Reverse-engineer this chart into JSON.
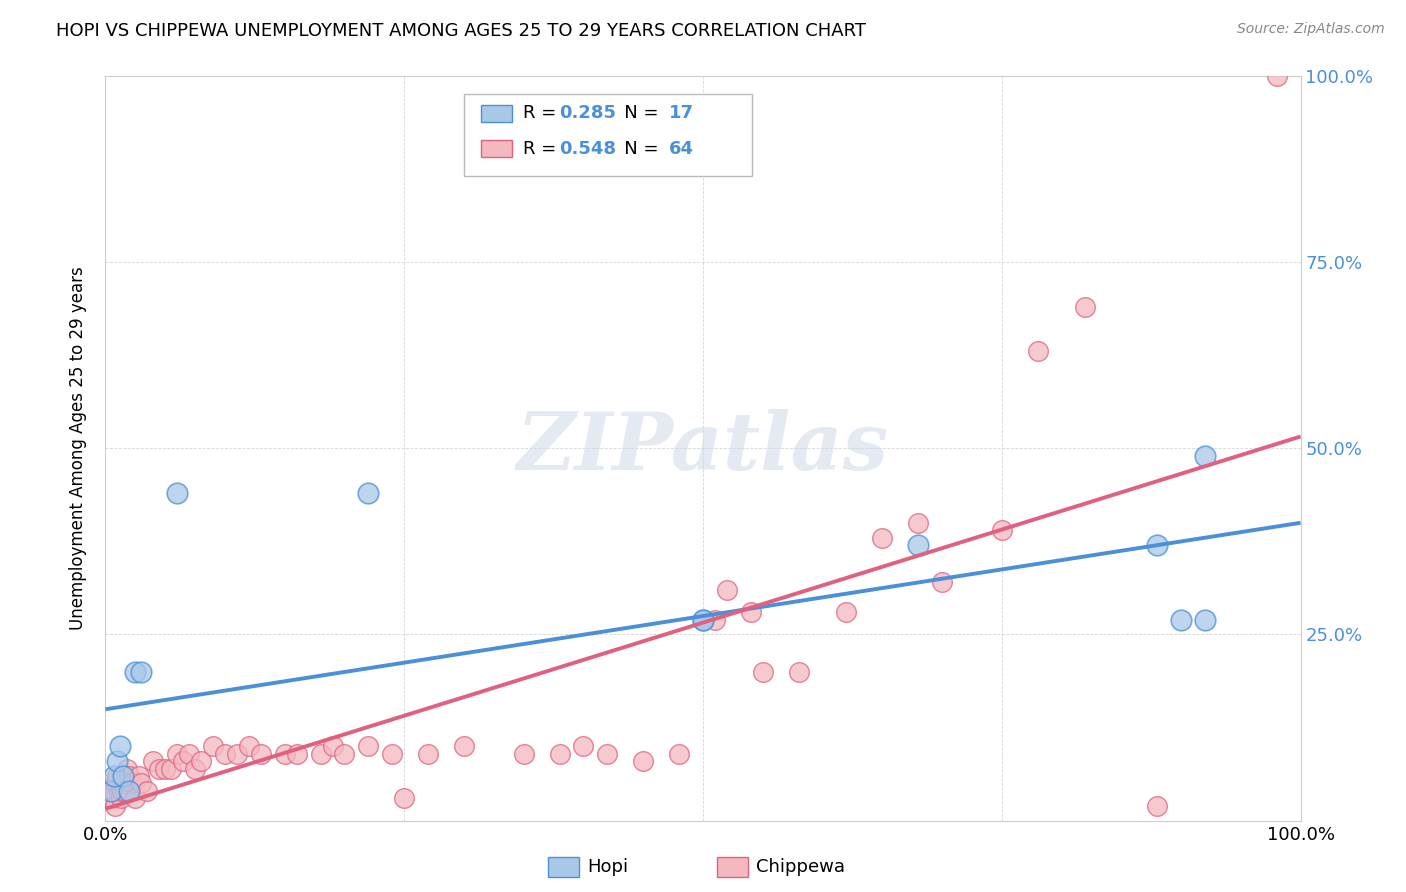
{
  "title": "HOPI VS CHIPPEWA UNEMPLOYMENT AMONG AGES 25 TO 29 YEARS CORRELATION CHART",
  "source": "Source: ZipAtlas.com",
  "ylabel": "Unemployment Among Ages 25 to 29 years",
  "xlim": [
    0,
    1.0
  ],
  "ylim": [
    0,
    1.0
  ],
  "hopi_color": "#a8c8e8",
  "chippewa_color": "#f4b8c0",
  "hopi_line_color": "#4a90d9",
  "chippewa_line_color": "#e0607e",
  "hopi_R": 0.285,
  "hopi_N": 17,
  "chippewa_R": 0.548,
  "chippewa_N": 64,
  "right_tick_color": "#4a90d9",
  "background_color": "#ffffff",
  "grid_color": "#cccccc",
  "hopi_x": [
    0.005,
    0.007,
    0.01,
    0.012,
    0.015,
    0.02,
    0.025,
    0.03,
    0.06,
    0.22,
    0.5,
    0.5,
    0.68,
    0.9,
    0.92,
    0.92,
    0.88
  ],
  "hopi_y": [
    0.04,
    0.06,
    0.08,
    0.1,
    0.06,
    0.04,
    0.2,
    0.2,
    0.44,
    0.44,
    0.27,
    0.27,
    0.37,
    0.27,
    0.49,
    0.27,
    0.37
  ],
  "chippewa_x": [
    0.003,
    0.005,
    0.006,
    0.007,
    0.008,
    0.009,
    0.01,
    0.012,
    0.013,
    0.014,
    0.015,
    0.016,
    0.018,
    0.02,
    0.022,
    0.025,
    0.028,
    0.03,
    0.035,
    0.04,
    0.045,
    0.05,
    0.055,
    0.06,
    0.065,
    0.07,
    0.075,
    0.08,
    0.09,
    0.1,
    0.11,
    0.12,
    0.13,
    0.15,
    0.16,
    0.18,
    0.19,
    0.2,
    0.22,
    0.24,
    0.25,
    0.27,
    0.3,
    0.35,
    0.38,
    0.4,
    0.42,
    0.45,
    0.48,
    0.5,
    0.51,
    0.52,
    0.54,
    0.55,
    0.58,
    0.62,
    0.65,
    0.68,
    0.7,
    0.75,
    0.78,
    0.82,
    0.88,
    0.98
  ],
  "chippewa_y": [
    0.03,
    0.05,
    0.03,
    0.04,
    0.02,
    0.05,
    0.06,
    0.04,
    0.03,
    0.04,
    0.05,
    0.04,
    0.07,
    0.06,
    0.05,
    0.03,
    0.06,
    0.05,
    0.04,
    0.08,
    0.07,
    0.07,
    0.07,
    0.09,
    0.08,
    0.09,
    0.07,
    0.08,
    0.1,
    0.09,
    0.09,
    0.1,
    0.09,
    0.09,
    0.09,
    0.09,
    0.1,
    0.09,
    0.1,
    0.09,
    0.03,
    0.09,
    0.1,
    0.09,
    0.09,
    0.1,
    0.09,
    0.08,
    0.09,
    0.27,
    0.27,
    0.31,
    0.28,
    0.2,
    0.2,
    0.28,
    0.38,
    0.4,
    0.32,
    0.39,
    0.63,
    0.69,
    0.02,
    1.0
  ]
}
